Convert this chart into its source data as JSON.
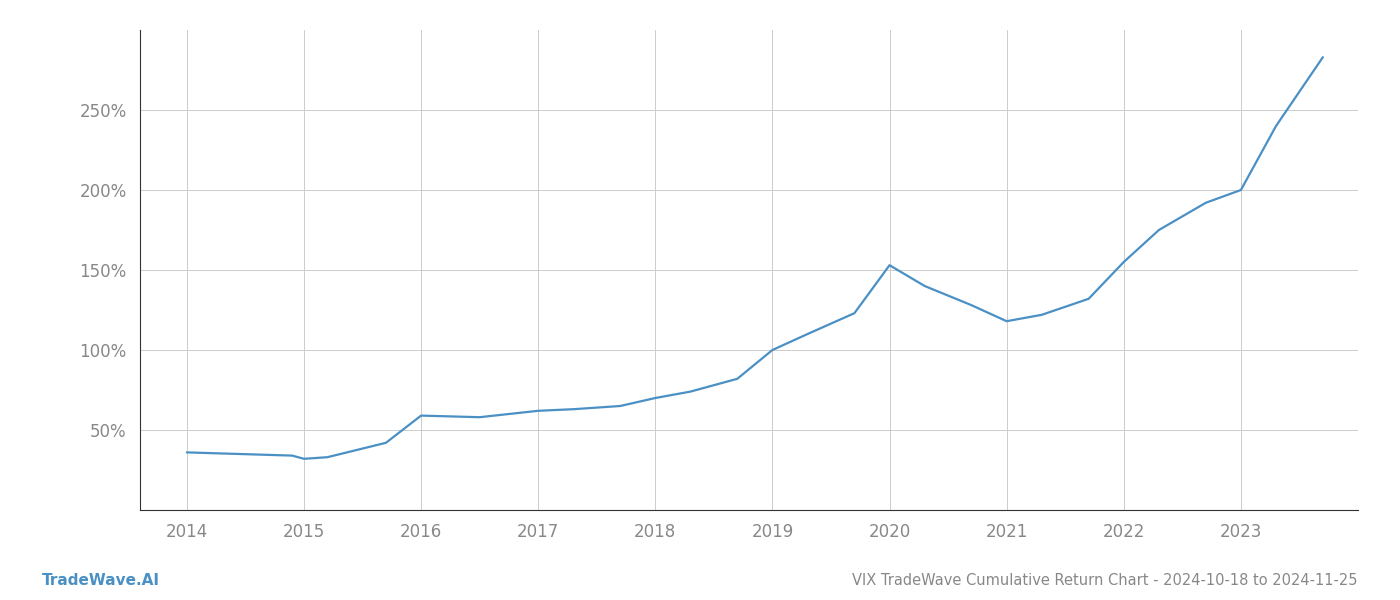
{
  "title": "VIX TradeWave Cumulative Return Chart - 2024-10-18 to 2024-11-25",
  "watermark": "TradeWave.AI",
  "x_values": [
    2014,
    2014.9,
    2015,
    2015.2,
    2015.7,
    2016,
    2016.5,
    2017,
    2017.3,
    2017.7,
    2018,
    2018.3,
    2018.7,
    2019,
    2019.3,
    2019.7,
    2020,
    2020.3,
    2020.7,
    2021,
    2021.3,
    2021.7,
    2022,
    2022.3,
    2022.7,
    2023,
    2023.3,
    2023.7
  ],
  "y_values": [
    36,
    34,
    32,
    33,
    42,
    59,
    58,
    62,
    63,
    65,
    70,
    74,
    82,
    100,
    110,
    123,
    153,
    140,
    128,
    118,
    122,
    132,
    155,
    175,
    192,
    200,
    240,
    283
  ],
  "line_color": "#4a90c4",
  "background_color": "#ffffff",
  "grid_color": "#cccccc",
  "spine_color": "#333333",
  "text_color": "#888888",
  "watermark_color": "#4a90c4",
  "ylim": [
    0,
    300
  ],
  "xlim": [
    2013.6,
    2024.0
  ],
  "yticks": [
    50,
    100,
    150,
    200,
    250
  ],
  "xticks": [
    2014,
    2015,
    2016,
    2017,
    2018,
    2019,
    2020,
    2021,
    2022,
    2023
  ],
  "line_width": 1.6,
  "figsize": [
    14,
    6
  ],
  "dpi": 100,
  "title_fontsize": 10.5,
  "watermark_fontsize": 11,
  "tick_fontsize": 12
}
